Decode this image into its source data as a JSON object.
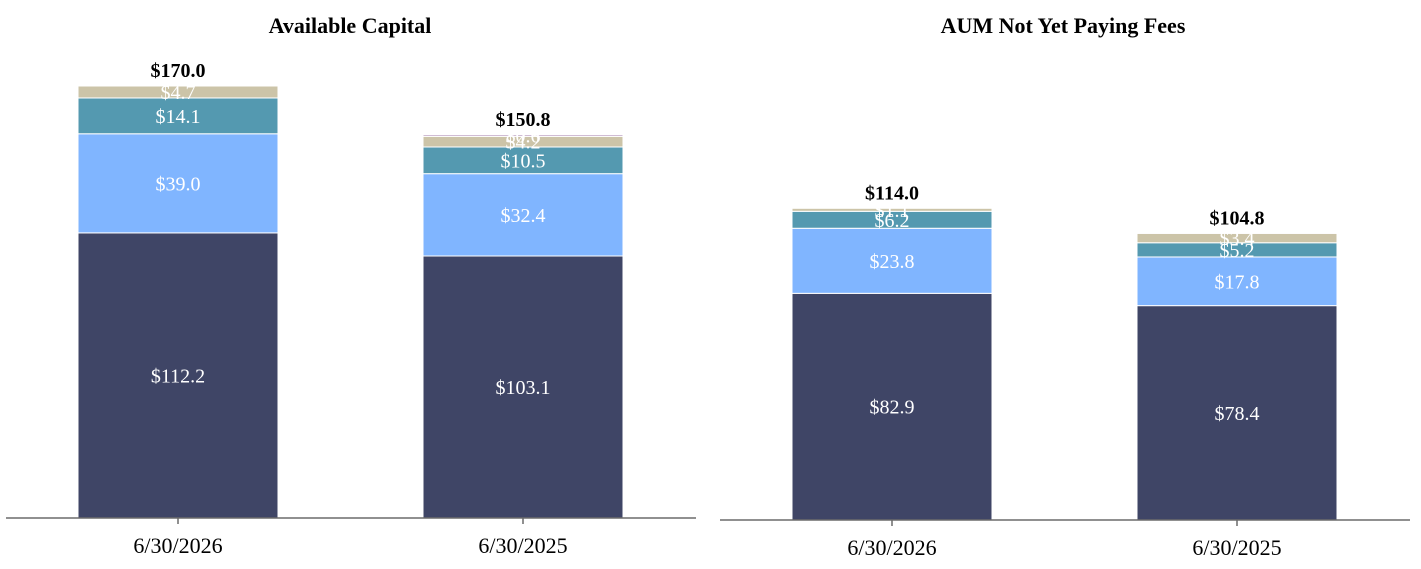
{
  "colors": {
    "navy": "#3f4566",
    "light_blue": "#80b5ff",
    "teal": "#5499b0",
    "tan": "#ccc4a8",
    "purple": "#a57fae",
    "axis": "#6b6b6b"
  },
  "chart_data": [
    {
      "type": "bar",
      "stacked": true,
      "title": "Available Capital",
      "categories": [
        "6/30/2026",
        "6/30/2025"
      ],
      "series": [
        {
          "color": "navy",
          "values": [
            112.2,
            103.1
          ],
          "labels": [
            "$112.2",
            "$103.1"
          ]
        },
        {
          "color": "light_blue",
          "values": [
            39.0,
            32.4
          ],
          "labels": [
            "$39.0",
            "$32.4"
          ]
        },
        {
          "color": "teal",
          "values": [
            14.1,
            10.5
          ],
          "labels": [
            "$14.1",
            "$10.5"
          ]
        },
        {
          "color": "tan",
          "values": [
            4.7,
            4.2
          ],
          "labels": [
            "$4.7",
            "$4.2"
          ]
        },
        {
          "color": "purple",
          "values": [
            0,
            0.6
          ],
          "labels": [
            "",
            "$0.6"
          ]
        }
      ],
      "totals": [
        170.0,
        150.8
      ],
      "total_labels": [
        "$170.0",
        "$150.8"
      ],
      "ylim": [
        0,
        170
      ]
    },
    {
      "type": "bar",
      "stacked": true,
      "title": "AUM Not Yet Paying Fees",
      "categories": [
        "6/30/2026",
        "6/30/2025"
      ],
      "series": [
        {
          "color": "navy",
          "values": [
            82.9,
            78.4
          ],
          "labels": [
            "$82.9",
            "$78.4"
          ]
        },
        {
          "color": "light_blue",
          "values": [
            23.8,
            17.8
          ],
          "labels": [
            "$23.8",
            "$17.8"
          ]
        },
        {
          "color": "teal",
          "values": [
            6.2,
            5.2
          ],
          "labels": [
            "$6.2",
            "$5.2"
          ]
        },
        {
          "color": "tan",
          "values": [
            1.1,
            3.4
          ],
          "labels": [
            "$1.1",
            "$3.4"
          ]
        }
      ],
      "totals": [
        114.0,
        104.8
      ],
      "total_labels": [
        "$114.0",
        "$104.8"
      ],
      "ylim": [
        0,
        158
      ]
    }
  ]
}
